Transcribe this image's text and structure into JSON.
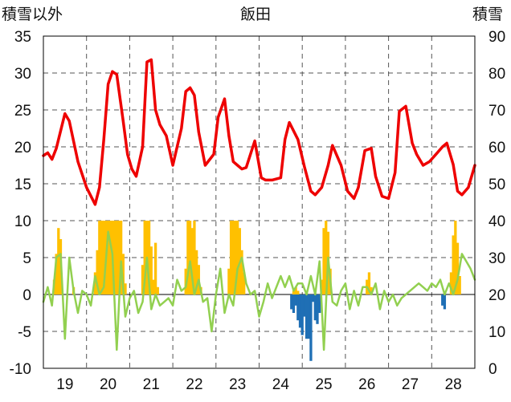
{
  "chart_data": {
    "type": "line",
    "title": "飯田",
    "ylabel_left": "積雪以外",
    "ylabel_right": "積雪",
    "ylim_left": [
      -10,
      35
    ],
    "ylim_right": [
      0,
      90
    ],
    "yticks_left": [
      "35",
      "30",
      "25",
      "20",
      "15",
      "10",
      "5",
      "0",
      "-5",
      "-10"
    ],
    "yticks_right": [
      "90",
      "80",
      "70",
      "60",
      "50",
      "40",
      "30",
      "20",
      "10",
      "0"
    ],
    "xlim": [
      18.5,
      28.5
    ],
    "xticks": [
      "19",
      "20",
      "21",
      "22",
      "23",
      "24",
      "25",
      "26",
      "27",
      "28"
    ],
    "grid": "dashed",
    "colors": {
      "temperature": "#ee0000",
      "precip": "#ffc000",
      "snow_change": "#1f6fb5",
      "other": "#92d050",
      "grid": "#555555",
      "frame": "#000000"
    },
    "series": [
      {
        "key": "temperature",
        "axis": "left",
        "style": "line",
        "x": [
          18.5,
          18.6,
          18.7,
          18.8,
          19.0,
          19.1,
          19.3,
          19.5,
          19.7,
          19.8,
          19.9,
          20.0,
          20.1,
          20.2,
          20.35,
          20.45,
          20.55,
          20.65,
          20.8,
          20.9,
          21.0,
          21.1,
          21.2,
          21.35,
          21.5,
          21.7,
          21.8,
          21.9,
          22.0,
          22.1,
          22.25,
          22.45,
          22.55,
          22.7,
          22.8,
          22.9,
          23.0,
          23.1,
          23.2,
          23.4,
          23.55,
          23.65,
          23.8,
          24.0,
          24.1,
          24.2,
          24.4,
          24.55,
          24.7,
          24.8,
          24.95,
          25.1,
          25.2,
          25.4,
          25.55,
          25.7,
          25.8,
          25.95,
          26.1,
          26.2,
          26.35,
          26.5,
          26.65,
          26.75,
          26.9,
          27.05,
          27.15,
          27.3,
          27.45,
          27.6,
          27.75,
          27.85,
          28.0,
          28.1,
          28.2,
          28.35,
          28.5
        ],
        "values": [
          18.8,
          19.2,
          18.3,
          19.8,
          24.5,
          23.5,
          18.0,
          14.5,
          12.2,
          14.5,
          21.0,
          28.5,
          30.2,
          29.8,
          23.5,
          19.0,
          17.0,
          16.0,
          20.0,
          31.5,
          31.8,
          25.0,
          23.0,
          21.5,
          17.5,
          22.5,
          27.5,
          28.0,
          27.0,
          22.0,
          17.5,
          19.0,
          24.0,
          26.5,
          21.5,
          18.0,
          17.5,
          17.0,
          17.2,
          20.8,
          15.8,
          15.5,
          15.5,
          15.8,
          21.0,
          23.3,
          21.0,
          17.3,
          14.0,
          13.5,
          14.5,
          17.5,
          20.2,
          17.5,
          14.0,
          13.0,
          14.5,
          19.5,
          19.8,
          16.0,
          13.3,
          13.0,
          16.5,
          24.8,
          25.5,
          20.5,
          19.0,
          17.5,
          18.0,
          19.0,
          20.0,
          20.5,
          17.6,
          14.0,
          13.5,
          14.5,
          17.5
        ]
      },
      {
        "key": "other",
        "axis": "left",
        "style": "line",
        "x": [
          18.5,
          18.6,
          18.7,
          18.8,
          18.9,
          19.0,
          19.1,
          19.2,
          19.3,
          19.4,
          19.5,
          19.6,
          19.7,
          19.8,
          19.9,
          20.0,
          20.1,
          20.2,
          20.3,
          20.4,
          20.5,
          20.6,
          20.7,
          20.8,
          20.9,
          21.0,
          21.1,
          21.2,
          21.3,
          21.4,
          21.5,
          21.6,
          21.7,
          21.8,
          21.9,
          22.0,
          22.1,
          22.2,
          22.3,
          22.4,
          22.5,
          22.6,
          22.7,
          22.8,
          22.9,
          23.0,
          23.1,
          23.2,
          23.3,
          23.4,
          23.5,
          23.6,
          23.7,
          23.8,
          23.9,
          24.0,
          24.1,
          24.2,
          24.3,
          24.4,
          24.5,
          24.6,
          24.7,
          24.8,
          24.9,
          25.0,
          25.1,
          25.2,
          25.3,
          25.4,
          25.5,
          25.6,
          25.7,
          25.8,
          25.9,
          26.0,
          26.1,
          26.2,
          26.3,
          26.4,
          26.5,
          26.6,
          26.7,
          26.8,
          26.9,
          27.0,
          27.1,
          27.2,
          27.3,
          27.4,
          27.5,
          27.6,
          27.7,
          27.8,
          27.9,
          28.0,
          28.1,
          28.2,
          28.3,
          28.4,
          28.5
        ],
        "values": [
          -1.0,
          1.0,
          -1.5,
          5.0,
          5.5,
          -6.0,
          5.0,
          0.5,
          -2.5,
          0.5,
          0.0,
          -1.5,
          2.5,
          0.0,
          1.0,
          8.5,
          5.5,
          -7.5,
          4.5,
          -3.0,
          -0.5,
          0.5,
          -2.5,
          -1.0,
          5.0,
          -2.0,
          0.0,
          -1.5,
          -1.0,
          -0.5,
          -1.5,
          2.0,
          0.5,
          1.0,
          4.5,
          0.0,
          2.0,
          -1.0,
          -0.5,
          -5.0,
          0.0,
          3.5,
          -2.5,
          0.0,
          -1.5,
          3.5,
          5.0,
          1.5,
          0.0,
          0.5,
          -3.0,
          -1.0,
          1.5,
          -0.5,
          1.0,
          2.5,
          1.0,
          2.5,
          0.5,
          1.5,
          1.5,
          0.0,
          2.5,
          0.0,
          4.5,
          -7.5,
          5.0,
          -1.0,
          -1.5,
          0.5,
          1.5,
          -2.0,
          0.5,
          -1.5,
          1.0,
          1.0,
          0.0,
          1.5,
          -2.0,
          0.5,
          -1.0,
          0.0,
          -1.5,
          -0.5,
          0.0,
          0.5,
          1.0,
          1.5,
          1.0,
          0.5,
          1.5,
          1.0,
          2.0,
          0.0,
          1.5,
          0.0,
          2.0,
          5.5,
          4.5,
          3.5,
          2.0
        ]
      },
      {
        "key": "precip",
        "axis": "left",
        "style": "bar",
        "x": [
          18.75,
          18.8,
          18.85,
          18.9,
          19.2,
          19.7,
          19.75,
          19.8,
          19.85,
          19.9,
          19.95,
          20.0,
          20.05,
          20.1,
          20.15,
          20.2,
          20.25,
          20.3,
          20.35,
          20.4,
          20.8,
          20.85,
          20.9,
          20.95,
          21.0,
          21.05,
          21.1,
          21.15,
          21.8,
          21.85,
          21.9,
          21.95,
          22.0,
          22.05,
          22.1,
          22.15,
          22.8,
          22.85,
          22.9,
          22.95,
          23.0,
          23.05,
          23.1,
          23.15,
          24.3,
          24.35,
          24.4,
          24.95,
          25.0,
          25.05,
          25.1,
          25.15,
          26.0,
          26.05,
          26.1,
          27.95,
          28.0,
          28.05,
          28.1,
          28.15
        ],
        "values": [
          2.0,
          5.5,
          9.0,
          7.5,
          1.0,
          3.0,
          6.0,
          10.0,
          10.0,
          10.0,
          10.0,
          10.0,
          10.0,
          10.0,
          10.0,
          10.0,
          10.0,
          10.0,
          5.5,
          1.5,
          4.0,
          10.0,
          10.0,
          10.0,
          6.5,
          2.0,
          7.0,
          1.0,
          3.5,
          10.0,
          10.0,
          9.0,
          10.0,
          6.0,
          4.0,
          1.0,
          3.5,
          10.0,
          10.0,
          10.0,
          10.0,
          9.0,
          6.0,
          3.0,
          0.5,
          1.0,
          0.5,
          2.0,
          9.0,
          10.0,
          8.5,
          3.5,
          2.0,
          3.0,
          1.0,
          3.0,
          8.0,
          10.0,
          7.0,
          2.5
        ]
      },
      {
        "key": "snow_change",
        "axis": "left",
        "style": "bar",
        "x": [
          24.25,
          24.3,
          24.35,
          24.4,
          24.45,
          24.5,
          24.55,
          24.6,
          24.65,
          24.7,
          24.75,
          24.8,
          24.85,
          24.9,
          27.75,
          27.8
        ],
        "values": [
          -2.0,
          -2.5,
          -1.5,
          -3.5,
          -4.5,
          -5.5,
          -3.0,
          -6.0,
          -6.0,
          -9.0,
          -1.0,
          -3.5,
          -4.0,
          -2.5,
          -1.5,
          -2.0
        ]
      }
    ]
  }
}
